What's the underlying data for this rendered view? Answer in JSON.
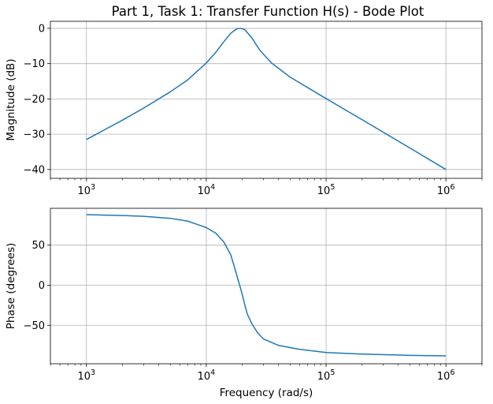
{
  "title": "Part 1, Task 1: Transfer Function H(s) - Bode Plot",
  "chart_data": [
    {
      "type": "line",
      "name": "magnitude-plot",
      "ylabel": "Magnitude (dB)",
      "xscale": "log",
      "xlim": [
        500,
        2000000
      ],
      "ylim": [
        -42.5,
        2.0
      ],
      "grid": true,
      "xticks": [
        {
          "value": 1000,
          "base": "10",
          "exp": "3"
        },
        {
          "value": 10000,
          "base": "10",
          "exp": "4"
        },
        {
          "value": 100000,
          "base": "10",
          "exp": "5"
        },
        {
          "value": 1000000,
          "base": "10",
          "exp": "6"
        }
      ],
      "yticks": [
        {
          "value": 0,
          "label": "0"
        },
        {
          "value": -10,
          "label": "−10"
        },
        {
          "value": -20,
          "label": "−20"
        },
        {
          "value": -30,
          "label": "−30"
        },
        {
          "value": -40,
          "label": "−40"
        }
      ],
      "color": "#1f77b4",
      "series": [
        {
          "x": [
            1000,
            2000,
            3000,
            5000,
            7000,
            10000,
            12000,
            14000,
            16000,
            18000,
            19500,
            21000,
            24000,
            28000,
            35000,
            50000,
            100000,
            200000,
            500000,
            1000000
          ],
          "y": [
            -31.5,
            -26.0,
            -22.6,
            -18.0,
            -14.6,
            -9.8,
            -6.8,
            -3.8,
            -1.4,
            -0.1,
            0.0,
            -0.4,
            -2.7,
            -6.2,
            -9.8,
            -13.8,
            -19.9,
            -25.9,
            -33.9,
            -40.0
          ]
        }
      ]
    },
    {
      "type": "line",
      "name": "phase-plot",
      "xlabel": "Frequency (rad/s)",
      "ylabel": "Phase (degrees)",
      "xscale": "log",
      "xlim": [
        500,
        2000000
      ],
      "ylim": [
        -98,
        96
      ],
      "grid": true,
      "xticks": [
        {
          "value": 1000,
          "base": "10",
          "exp": "3"
        },
        {
          "value": 10000,
          "base": "10",
          "exp": "4"
        },
        {
          "value": 100000,
          "base": "10",
          "exp": "5"
        },
        {
          "value": 1000000,
          "base": "10",
          "exp": "6"
        }
      ],
      "yticks": [
        {
          "value": 50,
          "label": "50"
        },
        {
          "value": 0,
          "label": "0"
        },
        {
          "value": -50,
          "label": "−50"
        }
      ],
      "color": "#1f77b4",
      "series": [
        {
          "x": [
            1000,
            2000,
            3000,
            5000,
            7000,
            10000,
            12000,
            14000,
            16000,
            17000,
            18000,
            19000,
            20000,
            21000,
            22000,
            24000,
            27000,
            30000,
            40000,
            60000,
            100000,
            200000,
            500000,
            1000000
          ],
          "y": [
            88.1,
            87.0,
            86.0,
            83.5,
            80.0,
            72.0,
            65.0,
            54.0,
            38.0,
            25.0,
            12.0,
            0.0,
            -12.0,
            -25.0,
            -36.0,
            -48.0,
            -60.0,
            -67.0,
            -75.0,
            -80.0,
            -84.0,
            -86.0,
            -87.5,
            -88.2
          ]
        }
      ]
    }
  ]
}
